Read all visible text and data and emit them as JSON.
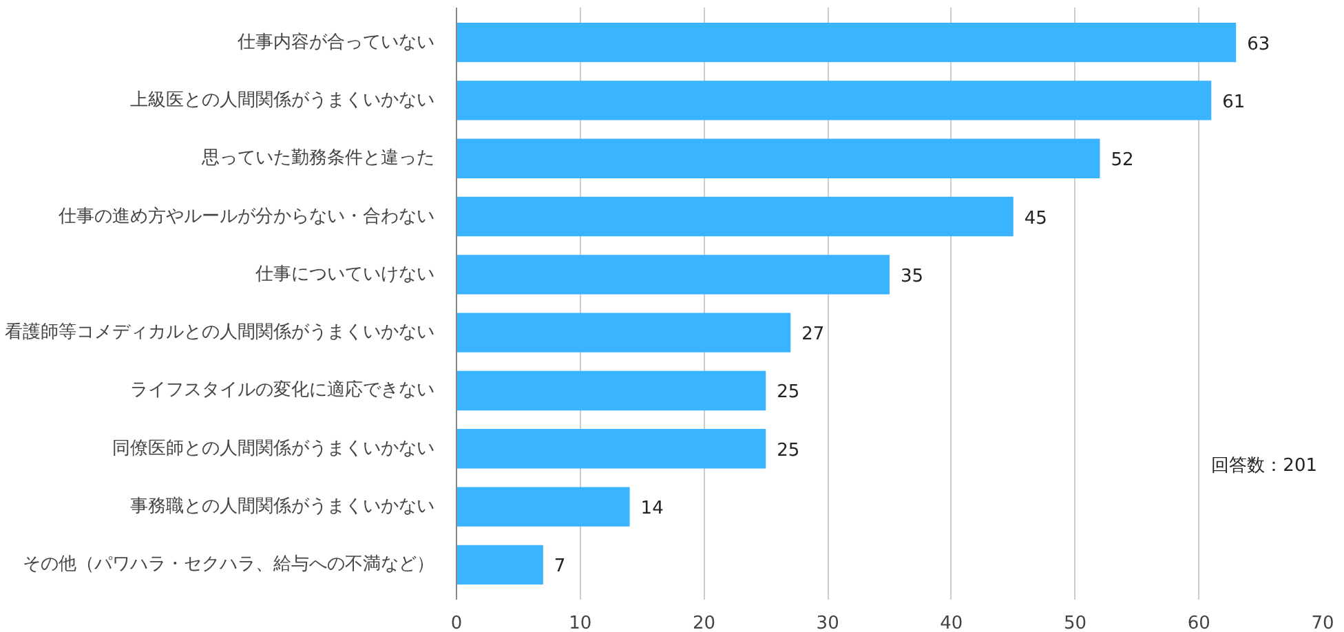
{
  "chart_data": {
    "type": "bar",
    "orientation": "horizontal",
    "categories": [
      "仕事内容が合っていない",
      "上級医との人間関係がうまくいかない",
      "思っていた勤務条件と違った",
      "仕事の進め方やルールが分からない・合わない",
      "仕事についていけない",
      "看護師等コメディカルとの人間関係がうまくいかない",
      "ライフスタイルの変化に適応できない",
      "同僚医師との人間関係がうまくいかない",
      "事務職との人間関係がうまくいかない",
      "その他（パワハラ・セクハラ、給与への不満など）"
    ],
    "values": [
      63,
      61,
      52,
      45,
      35,
      27,
      25,
      25,
      14,
      7
    ],
    "color": "#3bb4ff",
    "xlim": [
      0,
      70
    ],
    "xticks": [
      0,
      10,
      20,
      30,
      40,
      50,
      60,
      70
    ],
    "grid": "x",
    "data_labels": true,
    "annotations": [
      "回答数：201"
    ]
  }
}
